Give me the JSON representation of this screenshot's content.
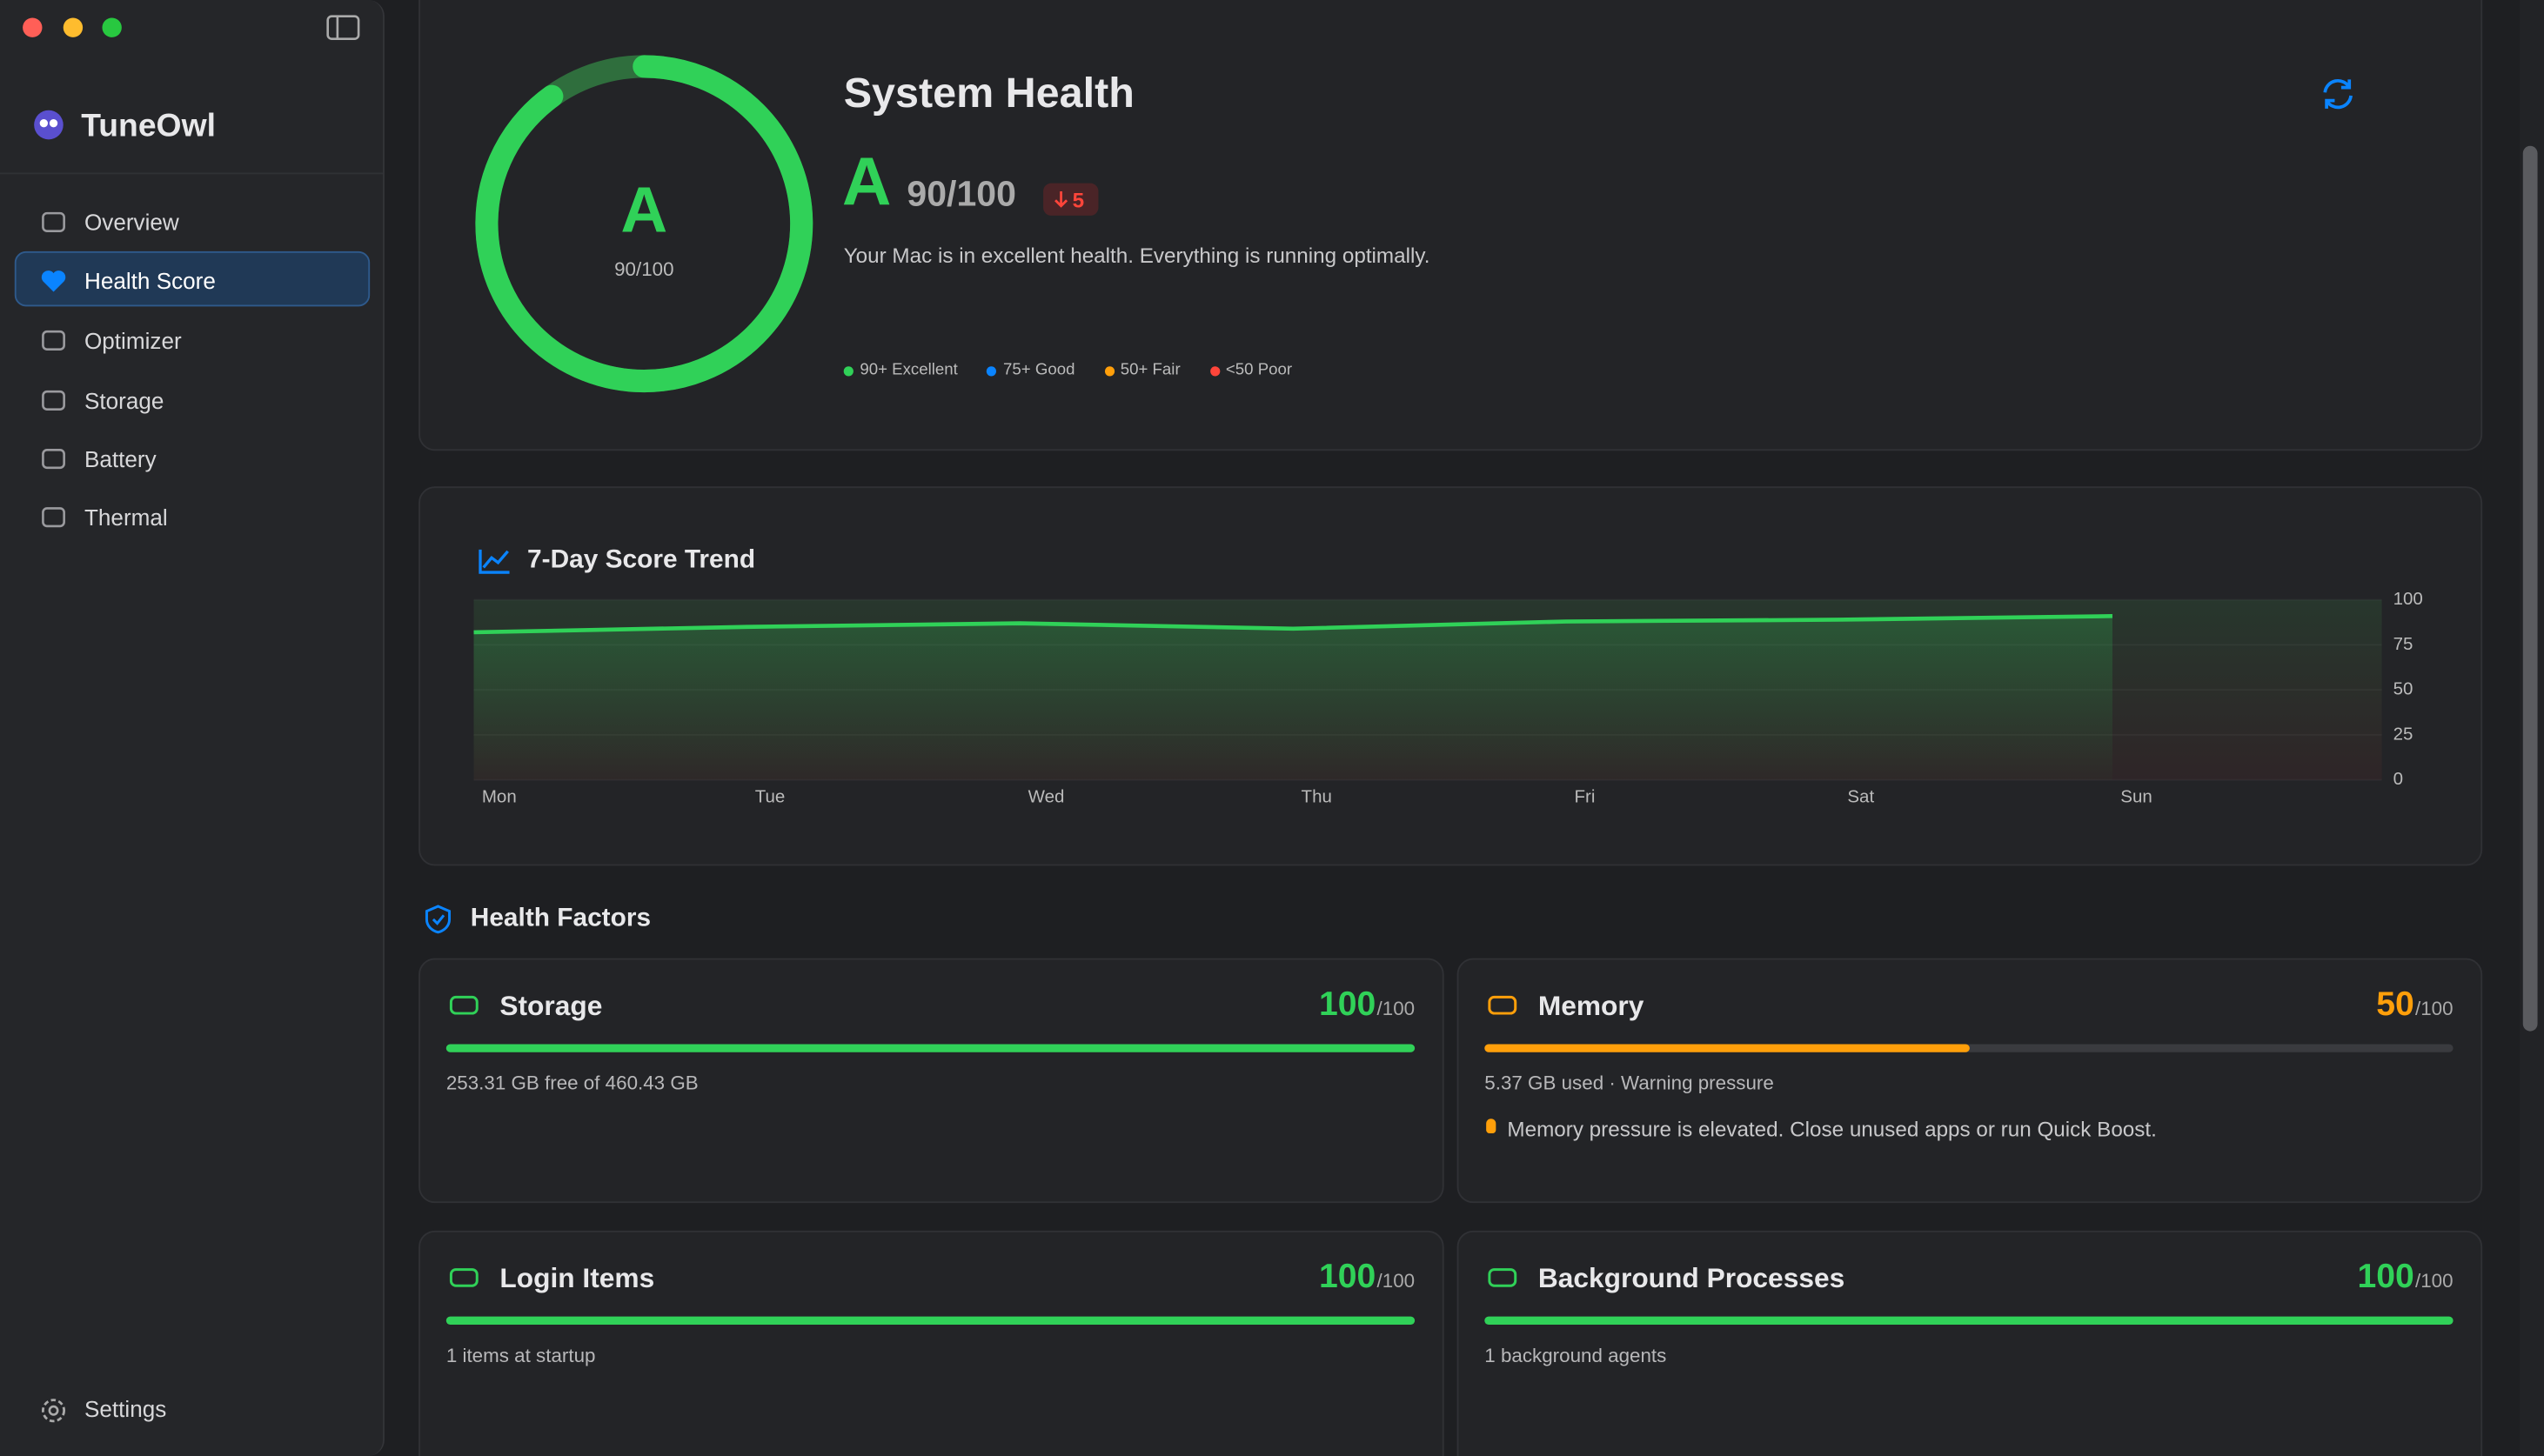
{
  "sidebar": {
    "app_name": "TuneOwl",
    "nav": [
      {
        "label": "Overview"
      },
      {
        "label": "Health Score",
        "selected": true
      },
      {
        "label": "Optimizer"
      },
      {
        "label": "Storage"
      },
      {
        "label": "Battery"
      },
      {
        "label": "Thermal"
      }
    ],
    "settings": "Settings"
  },
  "header": {
    "title": "System Health",
    "grade": "A",
    "score": 90,
    "ring_lim": [
      0,
      100
    ],
    "score_label": "90/100",
    "delta": "5",
    "message": "Your Mac is in excellent health. Everything is running optimally.",
    "legend": [
      {
        "label": "90+ Excellent",
        "color": "#30d158"
      },
      {
        "label": "75+ Good",
        "color": "#0a84ff"
      },
      {
        "label": "50+ Fair",
        "color": "#ff9f0a"
      },
      {
        "label": "<50 Poor",
        "color": "#ff453a"
      }
    ]
  },
  "trend": {
    "type": "line",
    "title": "7-Day Score Trend",
    "categories": [
      "Mon",
      "Tue",
      "Wed",
      "Thu",
      "Fri",
      "Sat",
      "Sun"
    ],
    "values": [
      82,
      85,
      87,
      84,
      88,
      89,
      91
    ],
    "color": "#30d158",
    "ylim": [
      0,
      100
    ],
    "yticks": [
      0,
      25,
      50,
      75,
      100
    ]
  },
  "factors": {
    "title": "Health Factors",
    "items": [
      {
        "name": "Storage",
        "score": 100,
        "max": {
          "value": 100,
          "label": "/100"
        },
        "detail": "253.31 GB free of 460.43 GB",
        "color": "#30d158"
      },
      {
        "name": "Memory",
        "score": 50,
        "max": {
          "value": 100,
          "label": "/100"
        },
        "detail": "5.37 GB used · Warning pressure",
        "tip": "Memory pressure is elevated. Close unused apps or run Quick Boost.",
        "color": "#ff9f0a"
      },
      {
        "name": "Login Items",
        "score": 100,
        "max": {
          "value": 100,
          "label": "/100"
        },
        "detail": "1 items at startup",
        "color": "#30d158"
      },
      {
        "name": "Background Processes",
        "score": 100,
        "max": {
          "value": 100,
          "label": "/100"
        },
        "detail": "1 background agents",
        "color": "#30d158"
      }
    ]
  }
}
